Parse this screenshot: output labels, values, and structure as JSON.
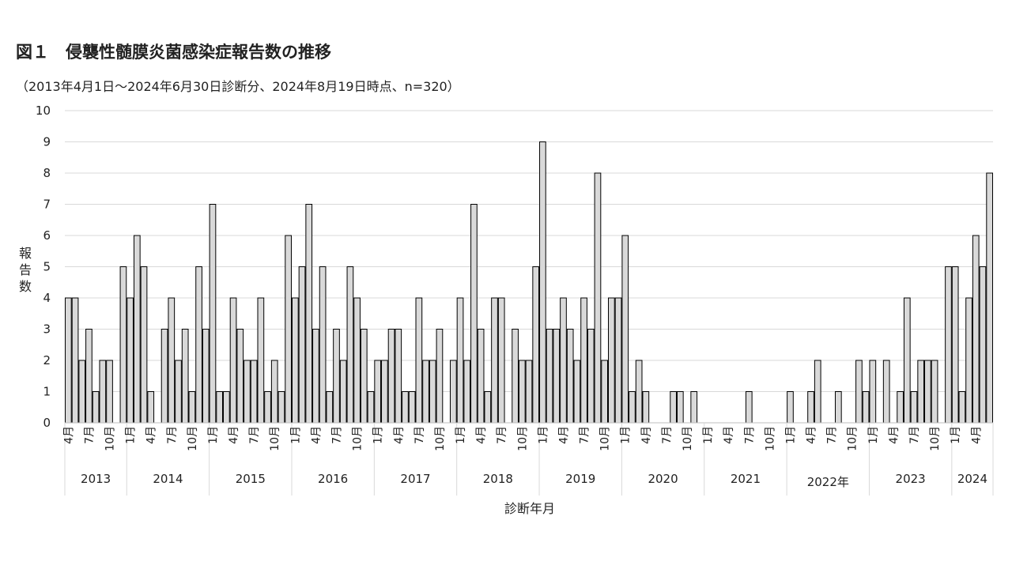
{
  "title": "図１　侵襲性髄膜炎菌感染症報告数の推移",
  "subtitle": "（2013年4月1日～2024年6月30日診断分、2024年8月19日時点、n=320）",
  "chart_data": {
    "type": "bar",
    "title": "図１　侵襲性髄膜炎菌感染症報告数の推移",
    "subtitle": "（2013年4月1日～2024年6月30日診断分、2024年8月19日時点、n=320）",
    "xlabel": "診断年月",
    "ylabel": "報告数",
    "ylim": [
      0,
      10
    ],
    "yticks": [
      0,
      1,
      2,
      3,
      4,
      5,
      6,
      7,
      8,
      9,
      10
    ],
    "grid": true,
    "legend": "none",
    "bar_color": "#d9d9d9",
    "bar_edge_color": "#000000",
    "grid_color": "#d9d9d9",
    "month_tick_labels": [
      "1月",
      "4月",
      "7月",
      "10月"
    ],
    "year_groups": [
      {
        "label": "2013",
        "start": "2013-04",
        "months": 9
      },
      {
        "label": "2014",
        "start": "2014-01",
        "months": 12
      },
      {
        "label": "2015",
        "start": "2015-01",
        "months": 12
      },
      {
        "label": "2016",
        "start": "2016-01",
        "months": 12
      },
      {
        "label": "2017",
        "start": "2017-01",
        "months": 12
      },
      {
        "label": "2018",
        "start": "2018-01",
        "months": 12
      },
      {
        "label": "2019",
        "start": "2019-01",
        "months": 12
      },
      {
        "label": "2020",
        "start": "2020-01",
        "months": 12
      },
      {
        "label": "2021",
        "start": "2021-01",
        "months": 12
      },
      {
        "label": "2022年",
        "start": "2022-01",
        "months": 12
      },
      {
        "label": "2023",
        "start": "2023-01",
        "months": 12
      },
      {
        "label": "2024",
        "start": "2024-01",
        "months": 6
      }
    ],
    "series": [
      {
        "values": [
          4,
          4,
          2,
          3,
          1,
          2,
          2,
          0,
          5,
          4,
          6,
          5,
          1,
          0,
          3,
          4,
          2,
          3,
          1,
          5,
          3,
          7,
          1,
          1,
          4,
          3,
          2,
          2,
          4,
          1,
          2,
          1,
          6,
          4,
          5,
          7,
          3,
          5,
          1,
          3,
          2,
          5,
          4,
          3,
          1,
          2,
          2,
          3,
          3,
          1,
          1,
          4,
          2,
          2,
          3,
          0,
          2,
          4,
          2,
          7,
          3,
          1,
          4,
          4,
          0,
          3,
          2,
          2,
          5,
          9,
          3,
          3,
          4,
          3,
          2,
          4,
          3,
          8,
          2,
          4,
          4,
          6,
          1,
          2,
          1,
          0,
          0,
          0,
          1,
          1,
          0,
          1,
          0,
          0,
          0,
          0,
          0,
          0,
          0,
          1,
          0,
          0,
          0,
          0,
          0,
          1,
          0,
          0,
          1,
          2,
          0,
          0,
          1,
          0,
          0,
          2,
          1,
          2,
          0,
          2,
          0,
          1,
          4,
          1,
          2,
          2,
          2,
          0,
          5,
          5,
          1,
          4,
          6,
          5,
          8
        ]
      }
    ]
  }
}
